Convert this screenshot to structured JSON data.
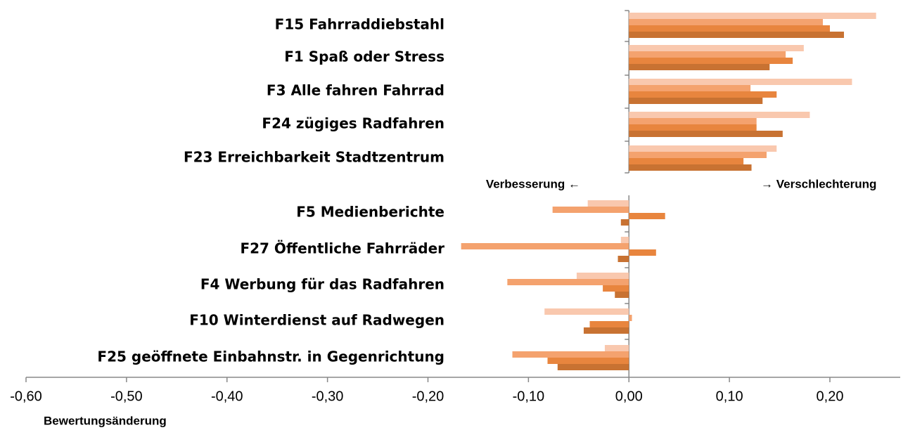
{
  "chart_data": {
    "type": "barh",
    "categories": [
      "F15 Fahrraddiebstahl",
      "F1 Spaß oder Stress",
      "F3  Alle fahren Fahrrad",
      "F24 zügiges Radfahren",
      "F23 Erreichbarkeit Stadtzentrum",
      "F5  Medienberichte",
      "F27 Öffentliche Fahrräder",
      "F4  Werbung für das Radfahren",
      "F10 Winterdienst auf Radwegen",
      "F25 geöffnete Einbahnstr. in Gegenrichtung"
    ],
    "series": [
      {
        "color": "#f9c8ae",
        "values": [
          0.246,
          0.174,
          0.222,
          0.18,
          0.147,
          -0.041,
          -0.008,
          -0.052,
          -0.084,
          -0.024
        ]
      },
      {
        "color": "#f4a26e",
        "values": [
          0.193,
          0.156,
          0.121,
          0.127,
          0.137,
          -0.076,
          -0.167,
          -0.121,
          0.003,
          -0.116
        ]
      },
      {
        "color": "#e8853e",
        "values": [
          0.2,
          0.163,
          0.147,
          0.127,
          0.114,
          0.036,
          0.027,
          -0.026,
          -0.039,
          -0.081
        ]
      },
      {
        "color": "#c87232",
        "values": [
          0.214,
          0.14,
          0.133,
          0.153,
          0.122,
          -0.008,
          -0.011,
          -0.014,
          -0.045,
          -0.071
        ]
      }
    ],
    "xlim": [
      -0.6,
      0.27
    ],
    "xticks": [
      {
        "value": -0.6,
        "label": "-0,60"
      },
      {
        "value": -0.5,
        "label": "-0,50"
      },
      {
        "value": -0.4,
        "label": "-0,40"
      },
      {
        "value": -0.3,
        "label": "-0,30"
      },
      {
        "value": -0.2,
        "label": "-0,20"
      },
      {
        "value": -0.1,
        "label": "-0,10"
      },
      {
        "value": 0,
        "label": "0,00"
      },
      {
        "value": 0.1,
        "label": "0,10"
      },
      {
        "value": 0.2,
        "label": "0,20"
      }
    ],
    "xlabel": "Bewertungsänderung",
    "annotations": [
      "Verbesserung ←",
      "→ Verschlechterung"
    ]
  }
}
